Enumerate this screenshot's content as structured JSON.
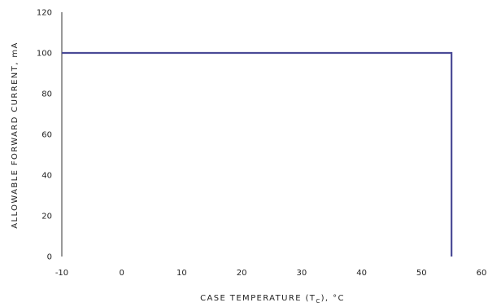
{
  "chart_data": {
    "type": "line",
    "title": "",
    "xlabel_main": "CASE TEMPERATURE (T",
    "xlabel_sub": "C",
    "xlabel_tail": "), °C",
    "ylabel": "ALLOWABLE FORWARD CURRENT, mA",
    "xlim": [
      -10,
      60
    ],
    "ylim": [
      0,
      120
    ],
    "xticks": [
      -10,
      0,
      10,
      20,
      30,
      40,
      50,
      60
    ],
    "yticks": [
      0,
      20,
      40,
      60,
      80,
      100,
      120
    ],
    "grid": false,
    "series": [
      {
        "color": "#4a4a96",
        "x": [
          -10,
          55,
          55
        ],
        "y": [
          100,
          100,
          0
        ]
      }
    ]
  }
}
